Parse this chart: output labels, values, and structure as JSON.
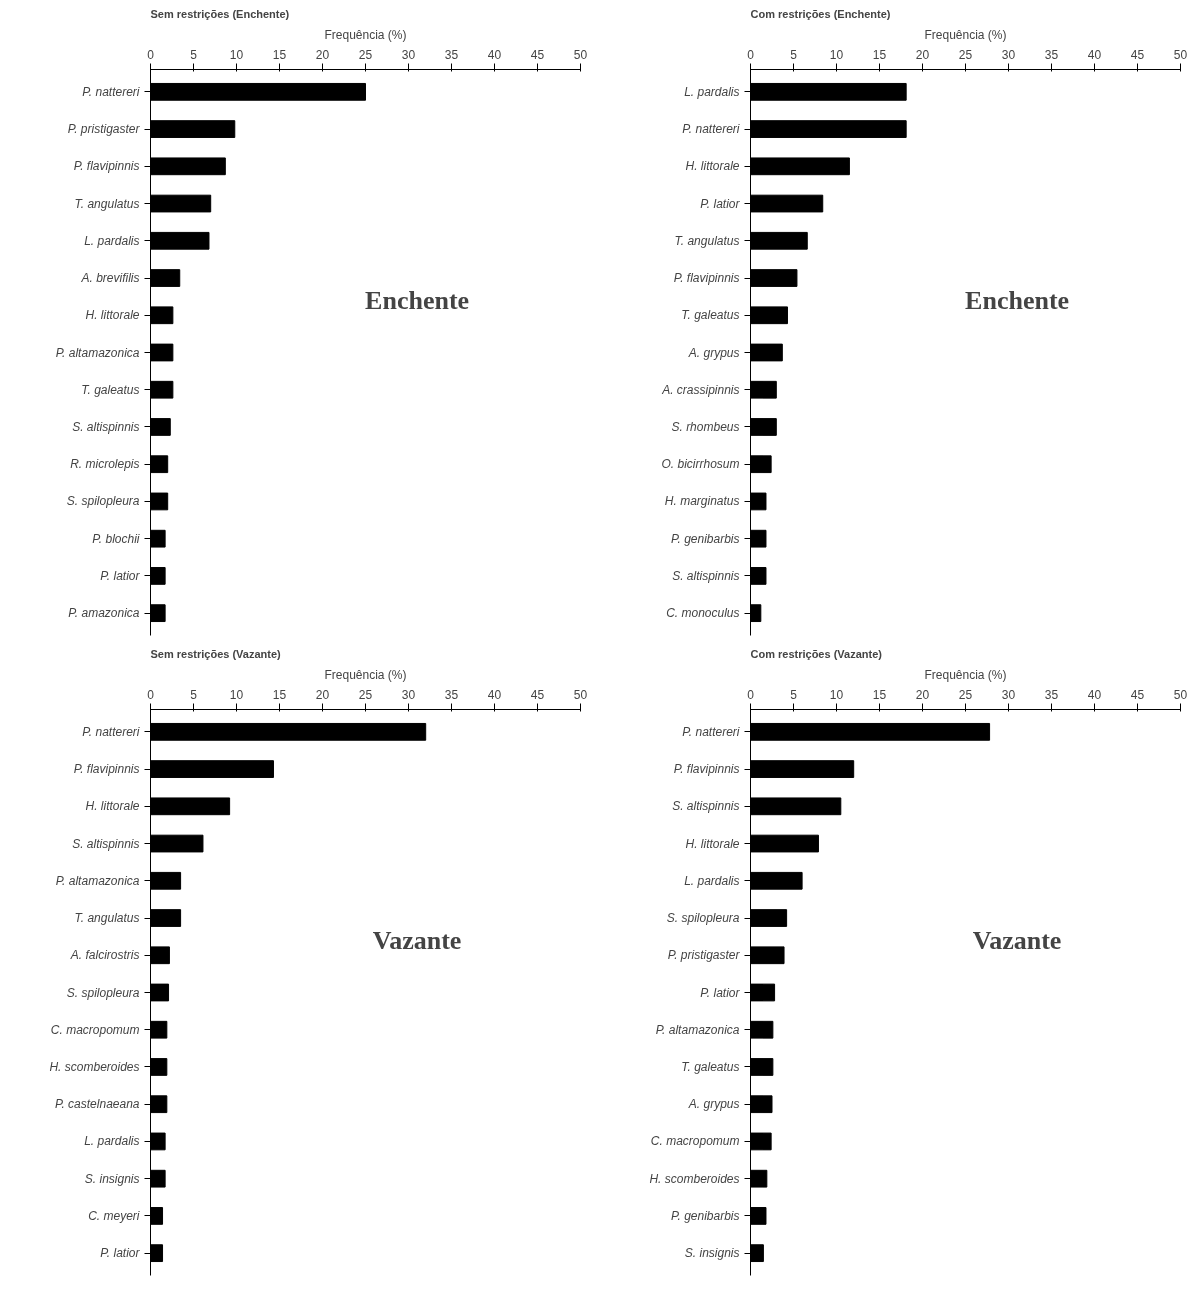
{
  "chart_data": [
    {
      "type": "bar",
      "orientation": "horizontal",
      "title": "Sem restrições (Enchente)",
      "xlabel": "Frequência (%)",
      "color": "#000000",
      "xlim": [
        0,
        50
      ],
      "xticks": [
        0,
        5,
        10,
        15,
        20,
        25,
        30,
        35,
        40,
        45,
        50
      ],
      "grid": false,
      "annotations": [
        "Enchente"
      ],
      "categories": [
        "P. nattereri",
        "P. pristigaster",
        "P. flavipinnis",
        "T. angulatus",
        "L. pardalis",
        "A. brevifilis",
        "H. littorale",
        "P. altamazonica",
        "T. galeatus",
        "S. altispinnis",
        "R. microlepis",
        "S. spilopleura",
        "P. blochii",
        "P. latior",
        "P. amazonica"
      ],
      "values": [
        25.0,
        9.8,
        8.7,
        7.0,
        6.8,
        3.4,
        2.6,
        2.6,
        2.6,
        2.3,
        2.0,
        2.0,
        1.7,
        1.7,
        1.7
      ]
    },
    {
      "type": "bar",
      "orientation": "horizontal",
      "title": "Com restrições (Enchente)",
      "xlabel": "Frequência (%)",
      "color": "#000000",
      "xlim": [
        0,
        50
      ],
      "xticks": [
        0,
        5,
        10,
        15,
        20,
        25,
        30,
        35,
        40,
        45,
        50
      ],
      "grid": false,
      "annotations": [
        "Enchente"
      ],
      "categories": [
        "L. pardalis",
        "P. nattereri",
        "H. littorale",
        "P. latior",
        "T. angulatus",
        "P. flavipinnis",
        "T. galeatus",
        "A. grypus",
        "A. crassipinnis",
        "S. rhombeus",
        "O. bicirrhosum",
        "H. marginatus",
        "P. genibarbis",
        "S. altispinnis",
        "C. monoculus"
      ],
      "values": [
        18.1,
        18.1,
        11.5,
        8.4,
        6.6,
        5.4,
        4.3,
        3.7,
        3.0,
        3.0,
        2.4,
        1.8,
        1.8,
        1.8,
        1.2
      ]
    },
    {
      "type": "bar",
      "orientation": "horizontal",
      "title": "Sem restrições (Vazante)",
      "xlabel": "Frequência (%)",
      "color": "#000000",
      "xlim": [
        0,
        50
      ],
      "xticks": [
        0,
        5,
        10,
        15,
        20,
        25,
        30,
        35,
        40,
        45,
        50
      ],
      "grid": false,
      "annotations": [
        "Vazante"
      ],
      "categories": [
        "P. nattereri",
        "P. flavipinnis",
        "H. littorale",
        "S. altispinnis",
        "P. altamazonica",
        "T. angulatus",
        "A. falcirostris",
        "S. spilopleura",
        "C. macropomum",
        "H. scomberoides",
        "P. castelnaeana",
        "L. pardalis",
        "S. insignis",
        "C. meyeri",
        "P. latior"
      ],
      "values": [
        32.0,
        14.3,
        9.2,
        6.1,
        3.5,
        3.5,
        2.2,
        2.1,
        1.9,
        1.9,
        1.9,
        1.7,
        1.7,
        1.4,
        1.4
      ]
    },
    {
      "type": "bar",
      "orientation": "horizontal",
      "title": "Com restrições (Vazante)",
      "xlabel": "Frequência (%)",
      "color": "#000000",
      "xlim": [
        0,
        50
      ],
      "xticks": [
        0,
        5,
        10,
        15,
        20,
        25,
        30,
        35,
        40,
        45,
        50
      ],
      "grid": false,
      "annotations": [
        "Vazante"
      ],
      "categories": [
        "P. nattereri",
        "P. flavipinnis",
        "S. altispinnis",
        "H. littorale",
        "L. pardalis",
        "S. spilopleura",
        "P. pristigaster",
        "P. latior",
        "P. altamazonica",
        "T. galeatus",
        "A. grypus",
        "C. macropomum",
        "H. scomberoides",
        "P. genibarbis",
        "S. insignis"
      ],
      "values": [
        27.8,
        12.0,
        10.5,
        7.9,
        6.0,
        4.2,
        3.9,
        2.8,
        2.6,
        2.6,
        2.5,
        2.4,
        1.9,
        1.8,
        1.5
      ]
    }
  ]
}
